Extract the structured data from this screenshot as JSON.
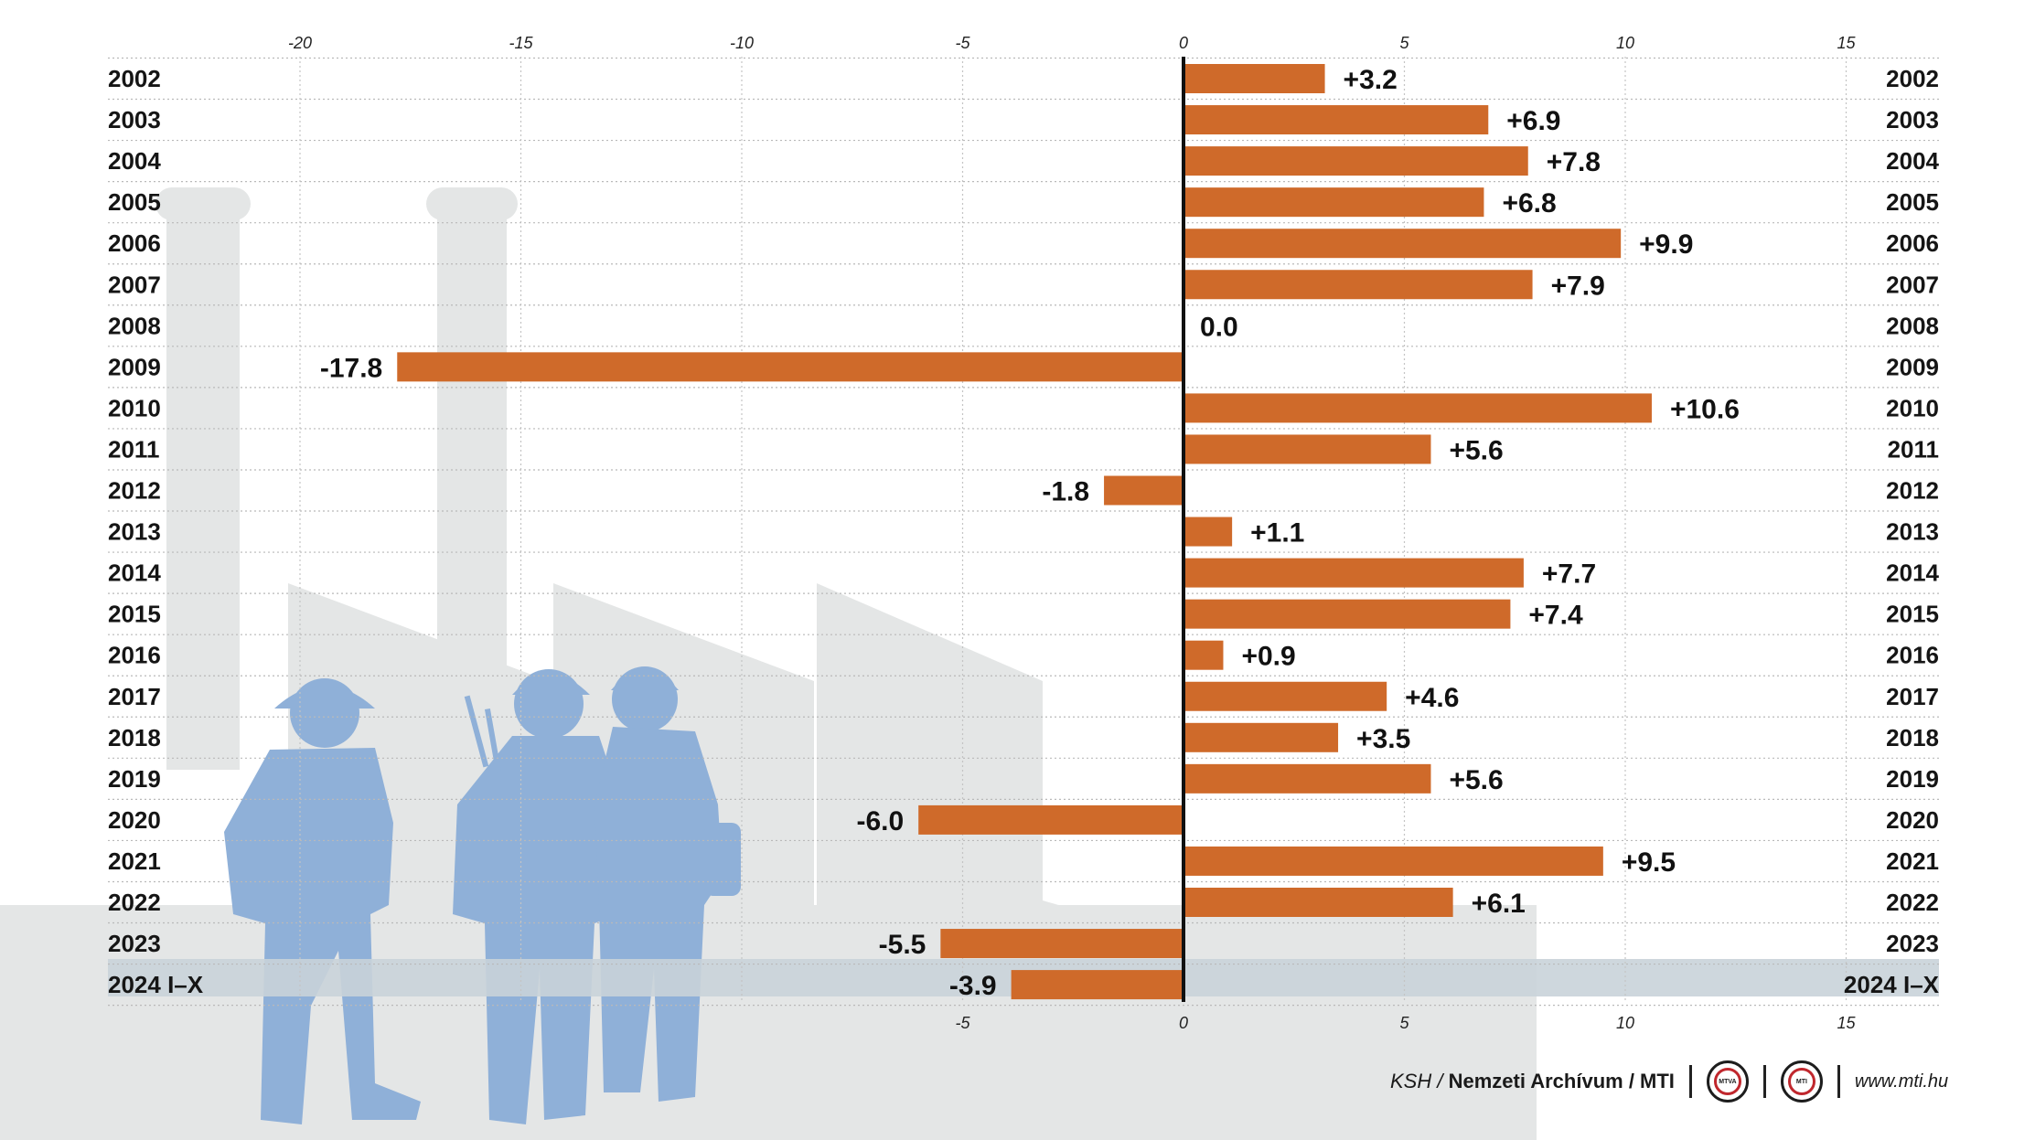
{
  "chart_data": {
    "type": "bar",
    "orientation": "horizontal",
    "categories": [
      "2002",
      "2003",
      "2004",
      "2005",
      "2006",
      "2007",
      "2008",
      "2009",
      "2010",
      "2011",
      "2012",
      "2013",
      "2014",
      "2015",
      "2016",
      "2017",
      "2018",
      "2019",
      "2020",
      "2021",
      "2022",
      "2023",
      "2024  I–X"
    ],
    "values": [
      3.2,
      6.9,
      7.8,
      6.8,
      9.9,
      7.9,
      0.0,
      -17.8,
      10.6,
      5.6,
      -1.8,
      1.1,
      7.7,
      7.4,
      0.9,
      4.6,
      3.5,
      5.6,
      -6.0,
      9.5,
      6.1,
      -5.5,
      -3.9
    ],
    "value_labels": [
      "+3.2",
      "+6.9",
      "+7.8",
      "+6.8",
      "+9.9",
      "+7.9",
      "0.0",
      "-17.8",
      "+10.6",
      "+5.6",
      "-1.8",
      "+1.1",
      "+7.7",
      "+7.4",
      "+0.9",
      "+4.6",
      "+3.5",
      "+5.6",
      "-6.0",
      "+9.5",
      "+6.1",
      "-5.5",
      "-3.9"
    ],
    "xlim": [
      -20,
      15
    ],
    "top_ticks": [
      "-20",
      "-15",
      "-10",
      "-5",
      "0",
      "5",
      "10",
      "15"
    ],
    "bottom_ticks": [
      "-5",
      "0",
      "5",
      "10",
      "15"
    ],
    "grid": true,
    "bar_color": "#cf6a2a",
    "highlight_row_color": "#c9d3d9",
    "title": "",
    "xlabel": "",
    "ylabel": ""
  },
  "footer": {
    "source_a": "KSH / ",
    "source_b": "Nemzeti Archívum / MTI",
    "logo1": "MTVA",
    "logo2": "MTI",
    "url": "www.mti.hu"
  },
  "colors": {
    "worker_silhouettes": "#8fb0d8",
    "factory_backdrop": "#e4e6e6"
  }
}
